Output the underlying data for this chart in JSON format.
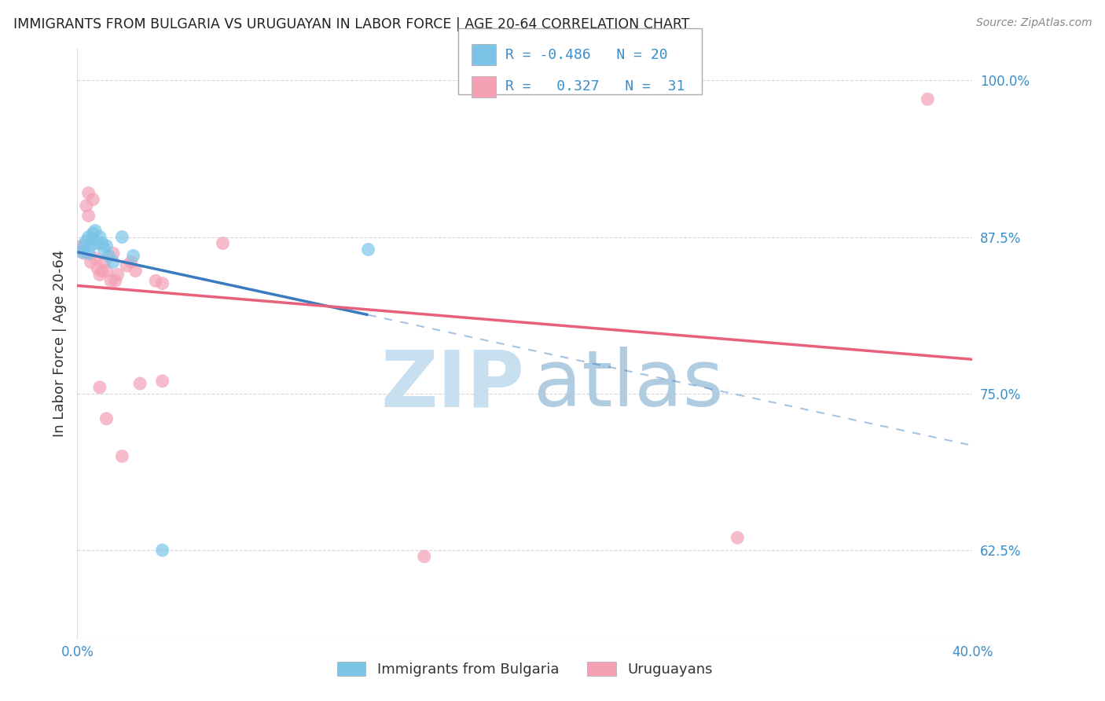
{
  "title": "IMMIGRANTS FROM BULGARIA VS URUGUAYAN IN LABOR FORCE | AGE 20-64 CORRELATION CHART",
  "source": "Source: ZipAtlas.com",
  "ylabel": "In Labor Force | Age 20-64",
  "ytick_labels": [
    "62.5%",
    "75.0%",
    "87.5%",
    "100.0%"
  ],
  "ytick_values": [
    0.625,
    0.75,
    0.875,
    1.0
  ],
  "xlim": [
    0.0,
    0.4
  ],
  "ylim": [
    0.555,
    1.025
  ],
  "legend_r_blue": "-0.486",
  "legend_n_blue": "20",
  "legend_r_pink": "0.327",
  "legend_n_pink": "31",
  "blue_scatter_x": [
    0.002,
    0.003,
    0.004,
    0.005,
    0.005,
    0.006,
    0.007,
    0.007,
    0.008,
    0.009,
    0.01,
    0.011,
    0.012,
    0.013,
    0.014,
    0.016,
    0.02,
    0.025,
    0.13,
    0.038
  ],
  "blue_scatter_y": [
    0.863,
    0.868,
    0.872,
    0.875,
    0.862,
    0.868,
    0.873,
    0.878,
    0.88,
    0.87,
    0.875,
    0.87,
    0.865,
    0.868,
    0.86,
    0.855,
    0.875,
    0.86,
    0.865,
    0.625
  ],
  "pink_scatter_x": [
    0.002,
    0.003,
    0.004,
    0.005,
    0.005,
    0.006,
    0.007,
    0.008,
    0.009,
    0.01,
    0.011,
    0.012,
    0.013,
    0.015,
    0.016,
    0.017,
    0.018,
    0.022,
    0.024,
    0.026,
    0.028,
    0.035,
    0.038,
    0.038,
    0.065,
    0.155,
    0.295,
    0.38,
    0.01,
    0.013,
    0.02
  ],
  "pink_scatter_y": [
    0.868,
    0.862,
    0.9,
    0.892,
    0.91,
    0.855,
    0.905,
    0.858,
    0.85,
    0.845,
    0.848,
    0.855,
    0.848,
    0.84,
    0.862,
    0.84,
    0.845,
    0.852,
    0.855,
    0.848,
    0.758,
    0.84,
    0.838,
    0.76,
    0.87,
    0.62,
    0.635,
    0.985,
    0.755,
    0.73,
    0.7
  ],
  "blue_color": "#7bc4e8",
  "pink_color": "#f4a0b5",
  "blue_line_color": "#3a7abf",
  "pink_line_color": "#e8607a",
  "grid_color": "#cccccc",
  "background_color": "#ffffff",
  "watermark_zip_color": "#c8dff0",
  "watermark_atlas_color": "#b0cce0"
}
